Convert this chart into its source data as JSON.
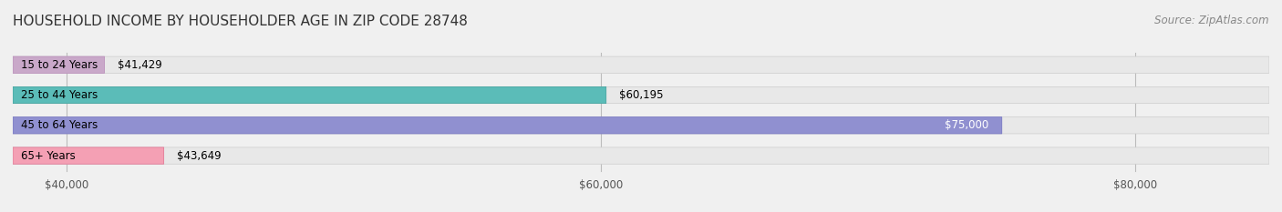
{
  "title": "HOUSEHOLD INCOME BY HOUSEHOLDER AGE IN ZIP CODE 28748",
  "source": "Source: ZipAtlas.com",
  "categories": [
    "15 to 24 Years",
    "25 to 44 Years",
    "45 to 64 Years",
    "65+ Years"
  ],
  "values": [
    41429,
    60195,
    75000,
    43649
  ],
  "bar_colors": [
    "#c9a8c9",
    "#5bbcb8",
    "#9090d0",
    "#f4a0b4"
  ],
  "bar_edge_colors": [
    "#b888b8",
    "#3a9e9a",
    "#7070c0",
    "#e07090"
  ],
  "value_labels": [
    "$41,429",
    "$60,195",
    "$75,000",
    "$43,649"
  ],
  "x_ticks": [
    40000,
    60000,
    80000
  ],
  "x_tick_labels": [
    "$40,000",
    "$60,000",
    "$80,000"
  ],
  "xlim_min": 38000,
  "xlim_max": 85000,
  "background_color": "#f0f0f0",
  "bar_bg_color": "#e8e8e8",
  "title_fontsize": 11,
  "source_fontsize": 8.5,
  "label_fontsize": 8.5,
  "tick_fontsize": 8.5,
  "bar_height": 0.55
}
